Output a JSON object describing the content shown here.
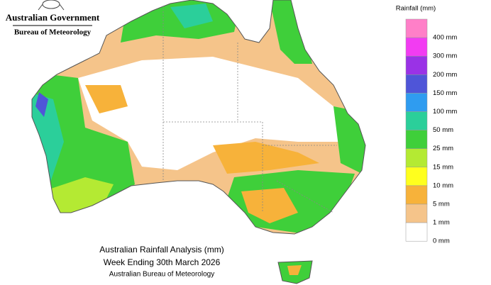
{
  "header": {
    "agency": "Australian Government",
    "bureau": "Bureau of Meteorology"
  },
  "legend": {
    "title": "Rainfall (mm)",
    "items": [
      {
        "label": "400 mm",
        "color": "#ff7fc8"
      },
      {
        "label": "300 mm",
        "color": "#f23cf2"
      },
      {
        "label": "200 mm",
        "color": "#9a32e6"
      },
      {
        "label": "150 mm",
        "color": "#4f55d8"
      },
      {
        "label": "100 mm",
        "color": "#2f9cf0"
      },
      {
        "label": "50 mm",
        "color": "#2bcf9a"
      },
      {
        "label": "25 mm",
        "color": "#3fcf3a"
      },
      {
        "label": "15 mm",
        "color": "#b4ea33"
      },
      {
        "label": "10 mm",
        "color": "#ffff1e"
      },
      {
        "label": "5 mm",
        "color": "#f7b23a"
      },
      {
        "label": "1 mm",
        "color": "#f5c48a"
      },
      {
        "label": "0 mm",
        "color": "#ffffff"
      }
    ]
  },
  "caption": {
    "line1": "Australian Rainfall Analysis (mm)",
    "line2": "Week Ending 30th March 2026",
    "line3": "Australian Bureau of Meteorology"
  }
}
